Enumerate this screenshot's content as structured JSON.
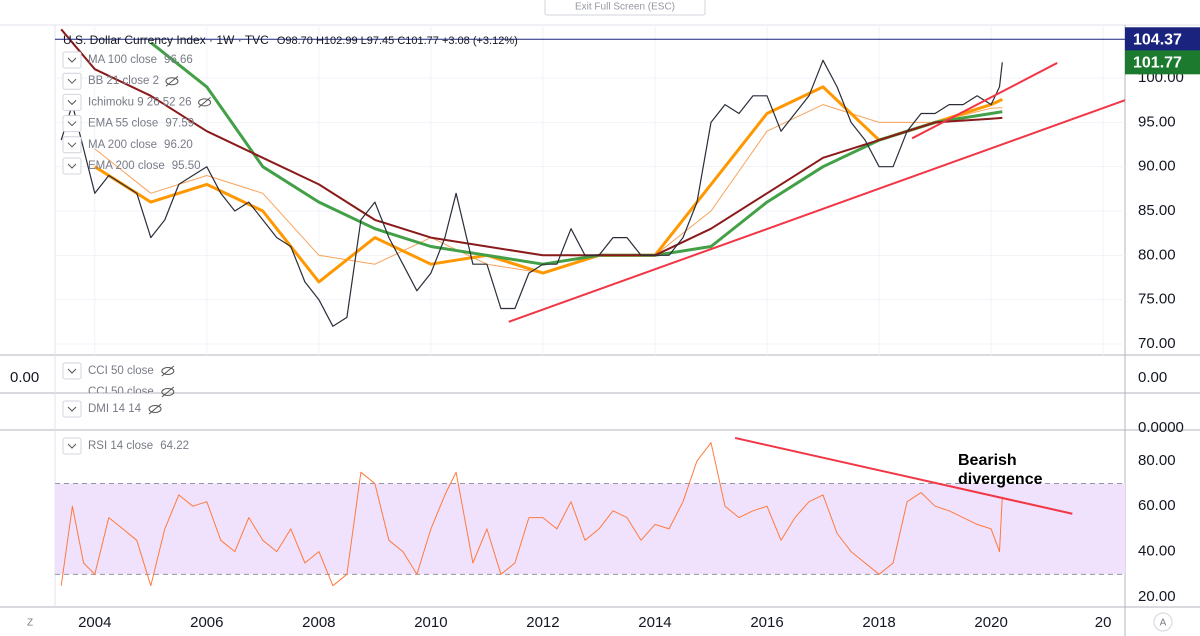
{
  "toolbar": {
    "exit": "Exit Full Screen (ESC)"
  },
  "chart_data": [
    {
      "type": "line",
      "title": "U.S. Dollar Currency Index · 1W · TVC",
      "ohlc": "O98.70 H102.99 L97.45 C101.77 +3.08 (+3.12%)",
      "color": "#2a2e39",
      "x": [
        2003.4,
        2003.6,
        2003.8,
        2004,
        2004.25,
        2004.5,
        2004.75,
        2005,
        2005.25,
        2005.5,
        2005.75,
        2006,
        2006.25,
        2006.5,
        2006.75,
        2007,
        2007.25,
        2007.5,
        2007.75,
        2008,
        2008.25,
        2008.5,
        2008.75,
        2009,
        2009.25,
        2009.5,
        2009.75,
        2010,
        2010.25,
        2010.45,
        2010.75,
        2011,
        2011.25,
        2011.5,
        2011.75,
        2012,
        2012.25,
        2012.5,
        2012.75,
        2013,
        2013.25,
        2013.5,
        2013.75,
        2014,
        2014.25,
        2014.5,
        2014.75,
        2015,
        2015.25,
        2015.5,
        2015.75,
        2016,
        2016.25,
        2016.5,
        2016.75,
        2017,
        2017.25,
        2017.5,
        2017.75,
        2018,
        2018.25,
        2018.5,
        2018.75,
        2019,
        2019.25,
        2019.5,
        2019.75,
        2020,
        2020.15,
        2020.2
      ],
      "values": [
        93,
        97,
        92,
        87,
        89,
        88,
        87,
        82,
        84,
        88,
        89,
        90,
        87,
        85,
        86,
        84,
        82,
        81,
        77,
        75,
        72,
        73,
        84,
        86,
        82,
        79,
        76,
        78,
        82,
        87,
        79,
        79,
        74,
        74,
        78,
        79,
        79,
        83,
        80,
        80,
        82,
        82,
        80,
        80,
        80,
        82,
        86,
        95,
        97,
        96,
        98,
        98,
        94,
        96,
        98,
        102,
        99,
        95,
        93,
        90,
        90,
        94,
        96,
        96,
        97,
        97,
        98,
        97,
        99,
        101.77
      ],
      "indicator_x": [
        2003.4,
        2004,
        2005,
        2006,
        2007,
        2008,
        2009,
        2010,
        2011,
        2012,
        2013,
        2014,
        2015,
        2016,
        2017,
        2018,
        2019,
        2020,
        2020.2
      ],
      "indicators": [
        {
          "name": "MA 100 close",
          "color": "#f7a35c",
          "width": 1,
          "last": 96.66,
          "values": [
            null,
            92,
            87,
            89,
            87,
            80,
            79,
            82,
            79,
            78,
            80,
            80,
            85,
            94,
            97,
            95,
            95,
            96.6,
            96.66
          ]
        },
        {
          "name": "BB 21 close 2",
          "hidden": true
        },
        {
          "name": "Ichimoku 9 26 52 26",
          "hidden": true
        },
        {
          "name": "EMA 55 close",
          "color": "#ff9800",
          "width": 3,
          "last": 97.59,
          "values": [
            null,
            90,
            86,
            88,
            85,
            77,
            82,
            79,
            80,
            78,
            80,
            80,
            88,
            96,
            99,
            93,
            95,
            97,
            97.59
          ]
        },
        {
          "name": "MA 200 close",
          "color": "#43a047",
          "width": 3,
          "last": {
            "value": 96.2,
            "label": "96.20"
          },
          "values": [
            null,
            null,
            104,
            99,
            90,
            86,
            83,
            81,
            80,
            79,
            80,
            80,
            81,
            86,
            90,
            93,
            95,
            96,
            96.2
          ]
        },
        {
          "name": "EMA 200 close",
          "color": "#8b1a1a",
          "width": 2,
          "last": {
            "value": 95.5,
            "label": "95.50"
          },
          "values": [
            105.5,
            101,
            98,
            94,
            91,
            88,
            84,
            82,
            81,
            80,
            80,
            80,
            83,
            87,
            91,
            93,
            95,
            95.4,
            95.5
          ]
        }
      ],
      "trendlines": [
        {
          "x": [
            2011.39,
            2022.39
          ],
          "values": [
            72.5,
            97.5
          ],
          "color": "#f23645"
        },
        {
          "x": [
            2018.59,
            2021.18
          ],
          "values": [
            93.2,
            101.7
          ],
          "color": "#f23645"
        }
      ],
      "price_labels": [
        {
          "value": 104.37,
          "color": "#1a237e",
          "line": true
        },
        {
          "value": 101.77,
          "color": "#1b7a2e",
          "line": false
        }
      ],
      "xlim": [
        2003.29,
        2022.39
      ],
      "xticks": [
        2004,
        2006,
        2008,
        2010,
        2012,
        2014,
        2016,
        2018,
        2020,
        {
          "value": 2022,
          "label": "20"
        }
      ],
      "ylim": [
        68.76,
        105.98
      ],
      "yticks": [
        {
          "value": 70,
          "label": "70.00"
        },
        {
          "value": 75,
          "label": "75.00"
        },
        {
          "value": 80,
          "label": "80.00"
        },
        {
          "value": 85,
          "label": "85.00"
        },
        {
          "value": 90,
          "label": "90.00"
        },
        {
          "value": 95,
          "label": "95.00"
        },
        {
          "value": 100,
          "label": "100.00"
        }
      ],
      "grid": true
    },
    {
      "type": "line",
      "title": "RSI 14 close",
      "last": 64.22,
      "color": "#ff7a3d",
      "x": [
        2003.4,
        2003.6,
        2003.8,
        2004,
        2004.25,
        2004.5,
        2004.75,
        2005,
        2005.25,
        2005.5,
        2005.75,
        2006,
        2006.25,
        2006.5,
        2006.75,
        2007,
        2007.25,
        2007.5,
        2007.75,
        2008,
        2008.25,
        2008.5,
        2008.75,
        2009,
        2009.25,
        2009.5,
        2009.75,
        2010,
        2010.25,
        2010.45,
        2010.75,
        2011,
        2011.25,
        2011.5,
        2011.75,
        2012,
        2012.25,
        2012.5,
        2012.75,
        2013,
        2013.25,
        2013.5,
        2013.75,
        2014,
        2014.25,
        2014.5,
        2014.75,
        2015,
        2015.25,
        2015.5,
        2015.75,
        2016,
        2016.25,
        2016.5,
        2016.75,
        2017,
        2017.25,
        2017.5,
        2017.75,
        2018,
        2018.25,
        2018.5,
        2018.75,
        2019,
        2019.25,
        2019.5,
        2019.75,
        2020,
        2020.15,
        2020.2
      ],
      "values": [
        25,
        60,
        35,
        30,
        55,
        50,
        45,
        25,
        50,
        65,
        60,
        62,
        45,
        40,
        55,
        45,
        40,
        50,
        35,
        40,
        25,
        30,
        75,
        70,
        45,
        40,
        30,
        50,
        65,
        75,
        35,
        50,
        30,
        35,
        55,
        55,
        50,
        62,
        45,
        50,
        58,
        55,
        45,
        52,
        50,
        62,
        80,
        88,
        60,
        55,
        58,
        60,
        45,
        55,
        62,
        65,
        48,
        40,
        35,
        30,
        35,
        62,
        66,
        60,
        58,
        55,
        52,
        50,
        40,
        64.22
      ],
      "band": [
        30,
        70
      ],
      "band_color": "#f0e2fc",
      "trendline": {
        "x": [
          2015.43,
          2021.45
        ],
        "values": [
          90.1,
          56.7
        ],
        "color": "#f23645"
      },
      "annotation": [
        "Bearish",
        "divergence"
      ],
      "ylim": [
        15.6,
        93.6
      ],
      "yticks": [
        {
          "value": 20,
          "label": "20.00"
        },
        {
          "value": 40,
          "label": "40.00"
        },
        {
          "value": 60,
          "label": "60.00"
        },
        {
          "value": 80,
          "label": "80.00"
        }
      ]
    }
  ],
  "panes": {
    "cci": {
      "labels": [
        "CCI 50 close",
        "CCI 50 close"
      ],
      "left_value": "0.00",
      "right_value": "0.00"
    },
    "dmi": {
      "label": "DMI 14 14",
      "right_value": "0.0000"
    }
  },
  "corner": {
    "left": "Z",
    "right": "A"
  }
}
